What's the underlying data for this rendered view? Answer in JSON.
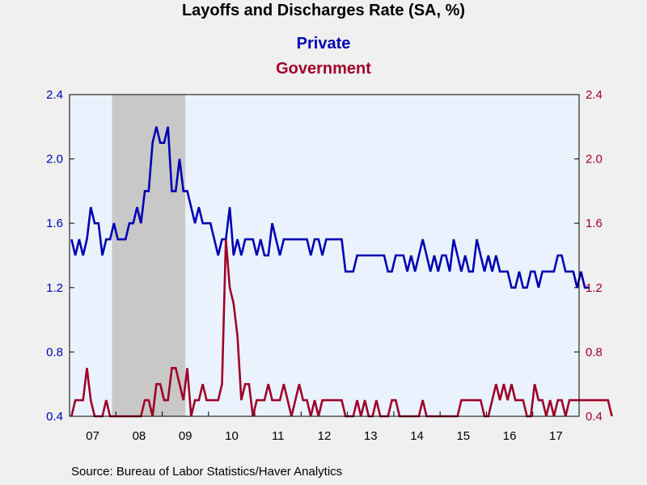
{
  "chart_data": {
    "type": "line",
    "title": "Layoffs and Discharges Rate (SA, %)",
    "source": "Source:  Bureau of Labor Statistics/Haver Analytics",
    "x_ticks": [
      "07",
      "08",
      "09",
      "10",
      "11",
      "12",
      "13",
      "14",
      "15",
      "16",
      "17"
    ],
    "y_left": {
      "ticks": [
        "0.4",
        "0.8",
        "1.2",
        "1.6",
        "2.0",
        "2.4"
      ],
      "ylim": [
        0.4,
        2.4
      ]
    },
    "y_right": {
      "ticks": [
        "0.4",
        "0.8",
        "1.2",
        "1.6",
        "2.0",
        "2.4"
      ],
      "ylim": [
        0.4,
        2.4
      ]
    },
    "x_range": [
      "2007-01",
      "2017-12"
    ],
    "recession_shading": {
      "start": "2007-12",
      "end": "2009-06",
      "color": "#c8c8c8"
    },
    "plot_background": "#eaf3fd",
    "series": [
      {
        "name": "Private",
        "axis": "left",
        "color": "#0000b4",
        "start": "2007-01",
        "values": [
          1.5,
          1.4,
          1.5,
          1.4,
          1.5,
          1.7,
          1.6,
          1.6,
          1.4,
          1.5,
          1.5,
          1.6,
          1.5,
          1.5,
          1.5,
          1.6,
          1.6,
          1.7,
          1.6,
          1.8,
          1.8,
          2.1,
          2.2,
          2.1,
          2.1,
          2.2,
          1.8,
          1.8,
          2.0,
          1.8,
          1.8,
          1.7,
          1.6,
          1.7,
          1.6,
          1.6,
          1.6,
          1.5,
          1.4,
          1.5,
          1.5,
          1.7,
          1.4,
          1.5,
          1.4,
          1.5,
          1.5,
          1.5,
          1.4,
          1.5,
          1.4,
          1.4,
          1.6,
          1.5,
          1.4,
          1.5,
          1.5,
          1.5,
          1.5,
          1.5,
          1.5,
          1.5,
          1.4,
          1.5,
          1.5,
          1.4,
          1.5,
          1.5,
          1.5,
          1.5,
          1.5,
          1.3,
          1.3,
          1.3,
          1.4,
          1.4,
          1.4,
          1.4,
          1.4,
          1.4,
          1.4,
          1.4,
          1.3,
          1.3,
          1.4,
          1.4,
          1.4,
          1.3,
          1.4,
          1.3,
          1.4,
          1.5,
          1.4,
          1.3,
          1.4,
          1.3,
          1.4,
          1.4,
          1.3,
          1.5,
          1.4,
          1.3,
          1.4,
          1.3,
          1.3,
          1.5,
          1.4,
          1.3,
          1.4,
          1.3,
          1.4,
          1.3,
          1.3,
          1.3,
          1.2,
          1.2,
          1.3,
          1.2,
          1.2,
          1.3,
          1.3,
          1.2,
          1.3,
          1.3,
          1.3,
          1.3,
          1.4,
          1.4,
          1.3,
          1.3,
          1.3,
          1.2,
          1.3,
          1.2,
          1.2
        ]
      },
      {
        "name": "Government",
        "axis": "right",
        "color": "#a00028",
        "start": "2007-01",
        "values": [
          0.4,
          0.5,
          0.5,
          0.5,
          0.7,
          0.5,
          0.4,
          0.4,
          0.4,
          0.5,
          0.4,
          0.4,
          0.4,
          0.4,
          0.4,
          0.4,
          0.4,
          0.4,
          0.4,
          0.5,
          0.5,
          0.4,
          0.6,
          0.6,
          0.5,
          0.5,
          0.7,
          0.7,
          0.6,
          0.5,
          0.7,
          0.4,
          0.5,
          0.5,
          0.6,
          0.5,
          0.5,
          0.5,
          0.5,
          0.6,
          1.5,
          1.2,
          1.1,
          0.9,
          0.5,
          0.6,
          0.6,
          0.4,
          0.5,
          0.5,
          0.5,
          0.6,
          0.5,
          0.5,
          0.5,
          0.6,
          0.5,
          0.4,
          0.5,
          0.6,
          0.5,
          0.5,
          0.4,
          0.5,
          0.4,
          0.5,
          0.5,
          0.5,
          0.5,
          0.5,
          0.5,
          0.4,
          0.4,
          0.4,
          0.5,
          0.4,
          0.5,
          0.4,
          0.4,
          0.5,
          0.4,
          0.4,
          0.4,
          0.5,
          0.5,
          0.4,
          0.4,
          0.4,
          0.4,
          0.4,
          0.4,
          0.5,
          0.4,
          0.4,
          0.4,
          0.4,
          0.4,
          0.4,
          0.4,
          0.4,
          0.4,
          0.5,
          0.5,
          0.5,
          0.5,
          0.5,
          0.5,
          0.4,
          0.4,
          0.5,
          0.6,
          0.5,
          0.6,
          0.5,
          0.6,
          0.5,
          0.5,
          0.5,
          0.4,
          0.4,
          0.6,
          0.5,
          0.5,
          0.4,
          0.5,
          0.4,
          0.5,
          0.5,
          0.4,
          0.5,
          0.5,
          0.5,
          0.5,
          0.5,
          0.5,
          0.5,
          0.5,
          0.5,
          0.5,
          0.5,
          0.4
        ]
      }
    ]
  }
}
